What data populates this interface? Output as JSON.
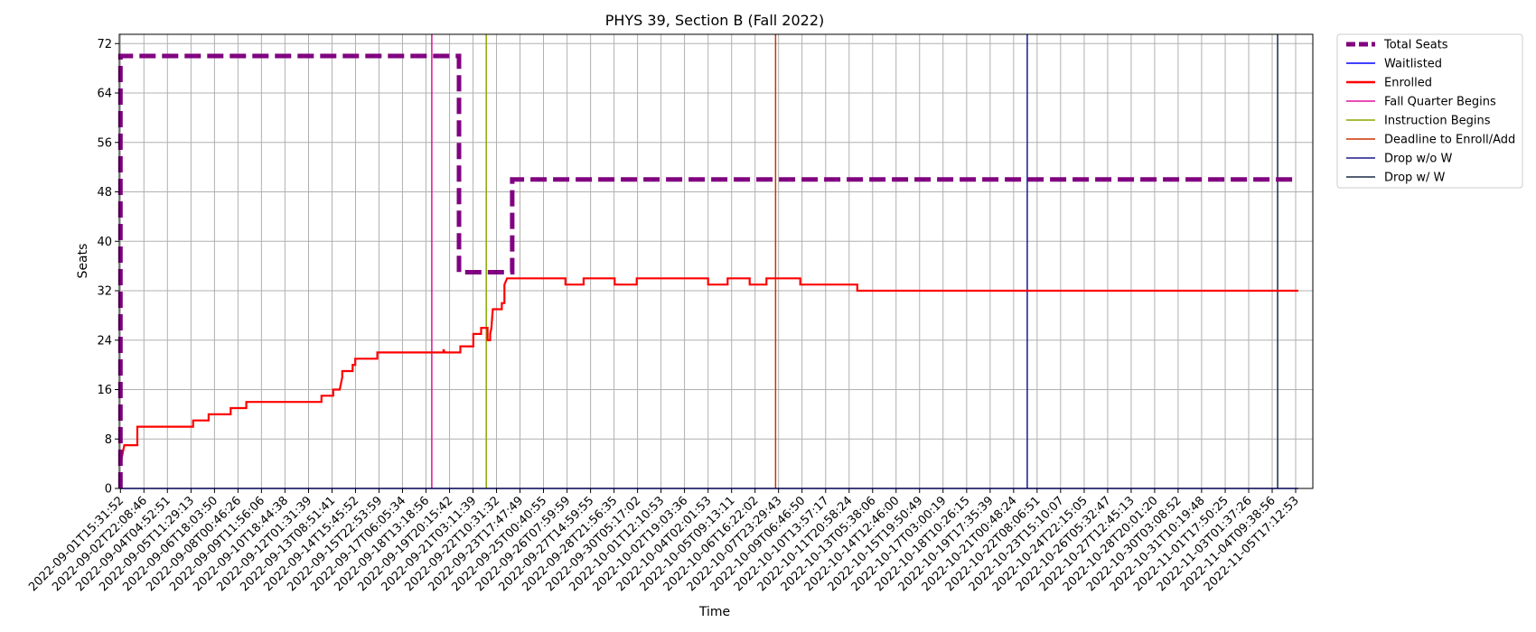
{
  "chart_data": {
    "type": "line",
    "title": "PHYS 39, Section B (Fall 2022)",
    "xlabel": "Time",
    "ylabel": "Seats",
    "ylim": [
      0,
      73.5
    ],
    "yticks": [
      0,
      8,
      16,
      24,
      32,
      40,
      48,
      56,
      64,
      72
    ],
    "grid": true,
    "legend_position": "outside-top-right",
    "x_range": [
      0,
      1000
    ],
    "x_ticks": [
      {
        "x": 0,
        "label": "2022-09-01T15:31:52"
      },
      {
        "x": 18.1,
        "label": "2022-09-02T22:08:46"
      },
      {
        "x": 36.2,
        "label": "2022-09-04T04:52:51"
      },
      {
        "x": 54.4,
        "label": "2022-09-05T11:29:13"
      },
      {
        "x": 72.5,
        "label": "2022-09-06T18:03:50"
      },
      {
        "x": 90.6,
        "label": "2022-09-08T00:46:26"
      },
      {
        "x": 108.7,
        "label": "2022-09-09T11:56:06"
      },
      {
        "x": 126.8,
        "label": "2022-09-10T18:44:38"
      },
      {
        "x": 145,
        "label": "2022-09-12T01:31:39"
      },
      {
        "x": 163.1,
        "label": "2022-09-13T08:51:41"
      },
      {
        "x": 181.2,
        "label": "2022-09-14T15:45:52"
      },
      {
        "x": 199.3,
        "label": "2022-09-15T22:53:59"
      },
      {
        "x": 217.4,
        "label": "2022-09-17T06:05:34"
      },
      {
        "x": 235.5,
        "label": "2022-09-18T13:18:56"
      },
      {
        "x": 253.7,
        "label": "2022-09-19T20:15:42"
      },
      {
        "x": 271.8,
        "label": "2022-09-21T03:11:39"
      },
      {
        "x": 289.9,
        "label": "2022-09-22T10:31:32"
      },
      {
        "x": 308,
        "label": "2022-09-23T17:47:49"
      },
      {
        "x": 326.1,
        "label": "2022-09-25T00:40:55"
      },
      {
        "x": 344.3,
        "label": "2022-09-26T07:59:59"
      },
      {
        "x": 362.4,
        "label": "2022-09-27T14:59:55"
      },
      {
        "x": 380.5,
        "label": "2022-09-28T21:56:35"
      },
      {
        "x": 398.6,
        "label": "2022-09-30T05:17:02"
      },
      {
        "x": 416.7,
        "label": "2022-10-01T12:10:53"
      },
      {
        "x": 434.8,
        "label": "2022-10-02T19:03:36"
      },
      {
        "x": 453,
        "label": "2022-10-04T02:01:53"
      },
      {
        "x": 471.1,
        "label": "2022-10-05T09:13:11"
      },
      {
        "x": 489.2,
        "label": "2022-10-06T16:22:02"
      },
      {
        "x": 507.3,
        "label": "2022-10-07T23:29:43"
      },
      {
        "x": 525.4,
        "label": "2022-10-09T06:46:50"
      },
      {
        "x": 543.6,
        "label": "2022-10-10T13:57:17"
      },
      {
        "x": 561.7,
        "label": "2022-10-11T20:58:24"
      },
      {
        "x": 579.8,
        "label": "2022-10-13T05:38:06"
      },
      {
        "x": 597.9,
        "label": "2022-10-14T12:46:00"
      },
      {
        "x": 616,
        "label": "2022-10-15T19:50:49"
      },
      {
        "x": 634.1,
        "label": "2022-10-17T03:00:19"
      },
      {
        "x": 652.3,
        "label": "2022-10-18T10:26:15"
      },
      {
        "x": 670.4,
        "label": "2022-10-19T17:35:39"
      },
      {
        "x": 688.5,
        "label": "2022-10-21T00:48:24"
      },
      {
        "x": 706.6,
        "label": "2022-10-22T08:06:51"
      },
      {
        "x": 724.7,
        "label": "2022-10-23T15:10:07"
      },
      {
        "x": 742.9,
        "label": "2022-10-24T22:15:05"
      },
      {
        "x": 761,
        "label": "2022-10-26T05:32:47"
      },
      {
        "x": 779.1,
        "label": "2022-10-27T12:45:13"
      },
      {
        "x": 797.2,
        "label": "2022-10-28T20:01:20"
      },
      {
        "x": 815.3,
        "label": "2022-10-30T03:08:52"
      },
      {
        "x": 833.4,
        "label": "2022-10-31T10:19:48"
      },
      {
        "x": 851.6,
        "label": "2022-11-01T17:50:25"
      },
      {
        "x": 869.7,
        "label": "2022-11-03T01:37:26"
      },
      {
        "x": 887.8,
        "label": "2022-11-04T09:38:56"
      },
      {
        "x": 905.9,
        "label": "2022-11-05T17:12:53"
      }
    ],
    "series": [
      {
        "name": "Total Seats",
        "color": "#800080",
        "style": "dashed",
        "points": [
          [
            0,
            0
          ],
          [
            0,
            70
          ],
          [
            261,
            70
          ],
          [
            261,
            35
          ],
          [
            302,
            35
          ],
          [
            302,
            50
          ],
          [
            908,
            50
          ]
        ]
      },
      {
        "name": "Waitlisted",
        "color": "#0000ff",
        "style": "solid",
        "points": [
          [
            0,
            0
          ],
          [
            908,
            0
          ]
        ]
      },
      {
        "name": "Enrolled",
        "color": "#ff0000",
        "style": "solid",
        "points": [
          [
            0,
            4
          ],
          [
            2,
            6
          ],
          [
            3,
            7
          ],
          [
            13,
            7
          ],
          [
            13,
            10
          ],
          [
            56,
            10
          ],
          [
            56,
            11
          ],
          [
            68,
            11
          ],
          [
            68,
            12
          ],
          [
            85,
            12
          ],
          [
            85,
            13
          ],
          [
            97,
            13
          ],
          [
            97,
            14
          ],
          [
            155,
            14
          ],
          [
            155,
            15
          ],
          [
            164,
            15
          ],
          [
            164,
            16
          ],
          [
            169,
            16
          ],
          [
            171,
            18
          ],
          [
            171,
            19
          ],
          [
            179,
            19
          ],
          [
            179,
            20
          ],
          [
            181,
            20
          ],
          [
            181,
            21
          ],
          [
            198,
            21
          ],
          [
            198,
            22
          ],
          [
            249,
            22
          ],
          [
            249,
            22.5
          ],
          [
            250,
            22
          ],
          [
            250,
            22
          ],
          [
            262,
            22
          ],
          [
            262,
            23
          ],
          [
            272,
            23
          ],
          [
            272,
            25
          ],
          [
            278,
            25
          ],
          [
            278,
            26
          ],
          [
            283,
            26
          ],
          [
            283,
            24
          ],
          [
            285,
            24
          ],
          [
            285,
            25
          ],
          [
            286,
            26
          ],
          [
            287,
            29
          ],
          [
            294,
            29
          ],
          [
            294,
            30
          ],
          [
            296,
            30
          ],
          [
            296,
            33
          ],
          [
            298,
            34
          ],
          [
            343,
            34
          ],
          [
            343,
            33
          ],
          [
            357,
            33
          ],
          [
            357,
            34
          ],
          [
            381,
            34
          ],
          [
            381,
            33
          ],
          [
            398,
            33
          ],
          [
            398,
            34
          ],
          [
            453,
            34
          ],
          [
            453,
            33
          ],
          [
            468,
            33
          ],
          [
            468,
            34
          ],
          [
            485,
            34
          ],
          [
            485,
            33
          ],
          [
            498,
            33
          ],
          [
            498,
            34
          ],
          [
            524,
            34
          ],
          [
            524,
            33
          ],
          [
            568,
            33
          ],
          [
            568,
            32
          ],
          [
            908,
            32
          ]
        ]
      }
    ],
    "events": [
      {
        "name": "Fall Quarter Begins",
        "color": "#e0109e",
        "x": 240
      },
      {
        "name": "Instruction Begins",
        "color": "#88aa00",
        "x": 282
      },
      {
        "name": "Deadline to Enroll/Add",
        "color": "#cc3300",
        "x": 505
      },
      {
        "name": "Drop w/o W",
        "color": "#1a1a8c",
        "x": 699
      },
      {
        "name": "Drop w/ W",
        "color": "#1a2a44",
        "x": 892
      }
    ]
  }
}
